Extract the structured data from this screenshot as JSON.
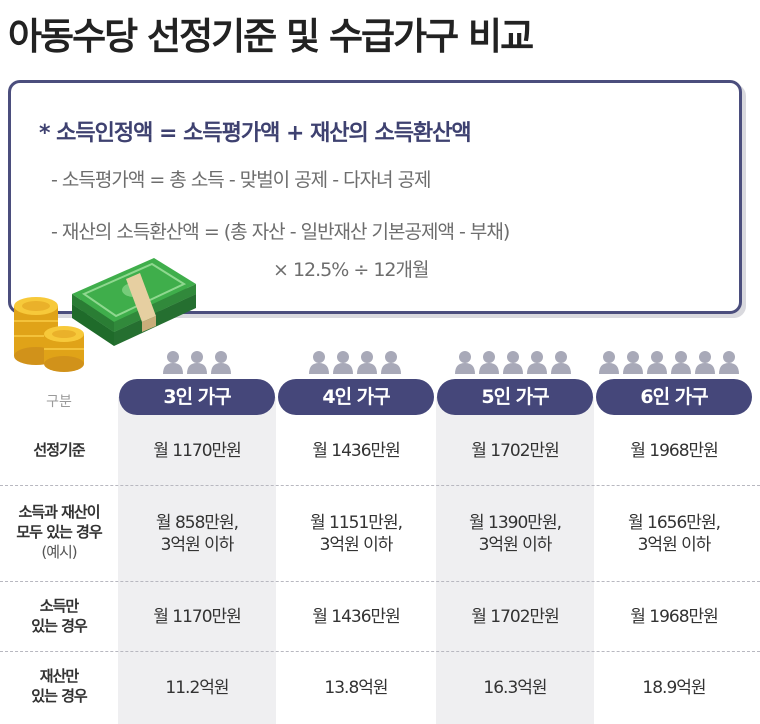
{
  "title": "아동수당 선정기준 및 수급가구 비교",
  "formula": {
    "main": "* 소득인정액 = 소득평가액 + 재산의 소득환산액",
    "line1": "- 소득평가액 = 총 소득 - 맞벌이 공제 - 다자녀 공제",
    "line2": "- 재산의 소득환산액 = (총 자산 - 일반재산 기본공제액 - 부채)",
    "line3": "× 12.5% ÷ 12개월"
  },
  "colors": {
    "accent": "#45477a",
    "stripe": "#efeff1",
    "person": "#a8a9b8"
  },
  "table": {
    "header_label": "구분",
    "columns": [
      {
        "label": "3인 가구",
        "people": 3
      },
      {
        "label": "4인 가구",
        "people": 4
      },
      {
        "label": "5인 가구",
        "people": 5
      },
      {
        "label": "6인 가구",
        "people": 6
      }
    ],
    "rows": [
      {
        "label_line1": "선정기준",
        "label_line2": "",
        "label_line3": "",
        "cells": [
          {
            "l1": "월 1170만원",
            "l2": ""
          },
          {
            "l1": "월 1436만원",
            "l2": ""
          },
          {
            "l1": "월 1702만원",
            "l2": ""
          },
          {
            "l1": "월 1968만원",
            "l2": ""
          }
        ]
      },
      {
        "label_line1": "소득과 재산이",
        "label_line2": "모두 있는 경우",
        "label_line3": "(예시)",
        "cells": [
          {
            "l1": "월 858만원,",
            "l2": "3억원 이하"
          },
          {
            "l1": "월 1151만원,",
            "l2": "3억원 이하"
          },
          {
            "l1": "월 1390만원,",
            "l2": "3억원 이하"
          },
          {
            "l1": "월 1656만원,",
            "l2": "3억원 이하"
          }
        ]
      },
      {
        "label_line1": "소득만",
        "label_line2": "있는 경우",
        "label_line3": "",
        "cells": [
          {
            "l1": "월 1170만원",
            "l2": ""
          },
          {
            "l1": "월 1436만원",
            "l2": ""
          },
          {
            "l1": "월 1702만원",
            "l2": ""
          },
          {
            "l1": "월 1968만원",
            "l2": ""
          }
        ]
      },
      {
        "label_line1": "재산만",
        "label_line2": "있는 경우",
        "label_line3": "",
        "cells": [
          {
            "l1": "11.2억원",
            "l2": ""
          },
          {
            "l1": "13.8억원",
            "l2": ""
          },
          {
            "l1": "16.3억원",
            "l2": ""
          },
          {
            "l1": "18.9억원",
            "l2": ""
          }
        ]
      }
    ]
  }
}
